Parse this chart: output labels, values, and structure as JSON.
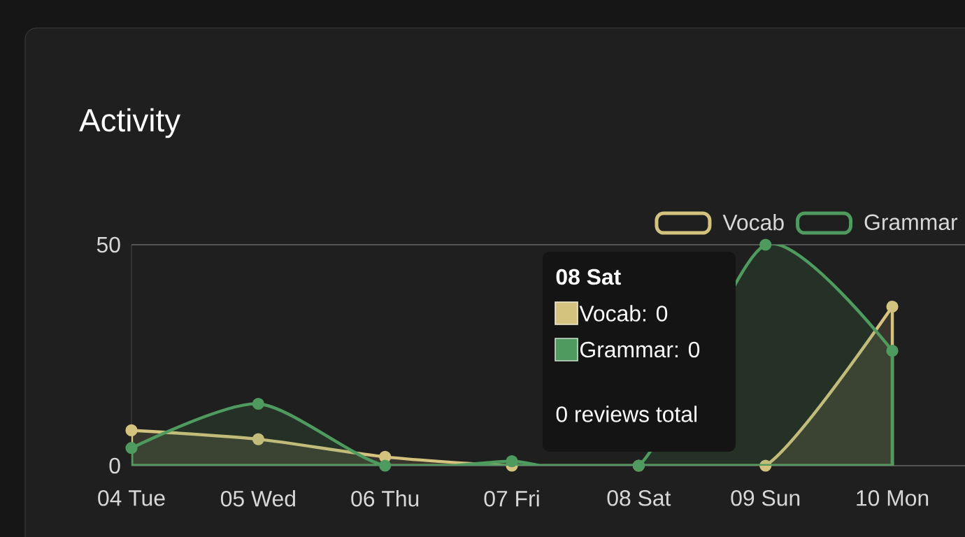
{
  "chart_data": {
    "type": "area",
    "title": "Activity",
    "categories": [
      "04 Tue",
      "05 Wed",
      "06 Thu",
      "07 Fri",
      "08 Sat",
      "09 Sun",
      "10 Mon"
    ],
    "series": [
      {
        "name": "Vocab",
        "color": "#d4c27f",
        "values": [
          8,
          6,
          2,
          0,
          0,
          0,
          36
        ]
      },
      {
        "name": "Grammar",
        "color": "#4f9a5f",
        "values": [
          4,
          14,
          0,
          1,
          0,
          50,
          26
        ]
      }
    ],
    "ylim": [
      0,
      50
    ],
    "yticks": [
      0,
      50
    ],
    "legend": "top right",
    "marker": "circle",
    "line_style": "solid",
    "annotations": [
      "08 Sat",
      "Vocab: 0",
      "Grammar: 0",
      "0 reviews total"
    ]
  }
}
